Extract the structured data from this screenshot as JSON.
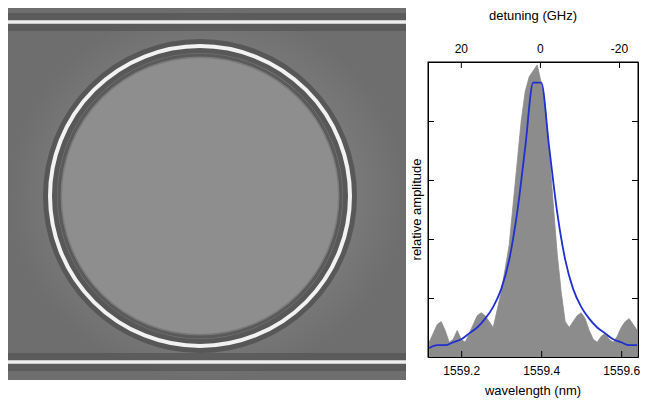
{
  "chart_data": {
    "type": "line",
    "x_label": "wavelength (nm)",
    "x2_label": "detuning (GHz)",
    "y_label": "relative amplitude",
    "xlim": [
      1559.117,
      1559.642
    ],
    "xticks": [
      1559.2,
      1559.4,
      1559.6
    ],
    "x2lim": [
      28.3,
      -24.8
    ],
    "x2ticks": [
      20,
      0,
      -20
    ],
    "ylim": [
      0,
      1
    ],
    "yticks": [
      0.2,
      0.4,
      0.6,
      0.8
    ],
    "tick_labels": "x",
    "series": [
      {
        "type": "area",
        "color": "#8c8c8c",
        "x": [
          1559.12,
          1559.13,
          1559.14,
          1559.15,
          1559.16,
          1559.17,
          1559.18,
          1559.19,
          1559.2,
          1559.21,
          1559.22,
          1559.23,
          1559.24,
          1559.25,
          1559.26,
          1559.27,
          1559.28,
          1559.29,
          1559.3,
          1559.31,
          1559.32,
          1559.33,
          1559.34,
          1559.35,
          1559.36,
          1559.37,
          1559.38,
          1559.39,
          1559.4,
          1559.41,
          1559.42,
          1559.43,
          1559.44,
          1559.45,
          1559.46,
          1559.47,
          1559.48,
          1559.49,
          1559.5,
          1559.51,
          1559.52,
          1559.53,
          1559.54,
          1559.55,
          1559.56,
          1559.57,
          1559.58,
          1559.59,
          1559.6,
          1559.61,
          1559.62,
          1559.63,
          1559.64
        ],
        "values": [
          0.05,
          0.08,
          0.11,
          0.12,
          0.09,
          0.05,
          0.06,
          0.09,
          0.06,
          0.05,
          0.08,
          0.11,
          0.14,
          0.15,
          0.14,
          0.12,
          0.1,
          0.16,
          0.22,
          0.3,
          0.38,
          0.52,
          0.66,
          0.8,
          0.9,
          0.95,
          0.97,
          0.99,
          0.93,
          0.85,
          0.7,
          0.52,
          0.35,
          0.22,
          0.12,
          0.1,
          0.12,
          0.14,
          0.15,
          0.13,
          0.09,
          0.06,
          0.05,
          0.07,
          0.08,
          0.06,
          0.05,
          0.07,
          0.1,
          0.12,
          0.13,
          0.11,
          0.09
        ]
      },
      {
        "type": "line",
        "color": "#1f2fd0",
        "x": [
          1559.12,
          1559.14,
          1559.16,
          1559.18,
          1559.2,
          1559.22,
          1559.24,
          1559.26,
          1559.28,
          1559.3,
          1559.32,
          1559.34,
          1559.36,
          1559.38,
          1559.4,
          1559.42,
          1559.44,
          1559.46,
          1559.48,
          1559.5,
          1559.52,
          1559.54,
          1559.56,
          1559.58,
          1559.6,
          1559.62,
          1559.64
        ],
        "values": [
          0.03,
          0.04,
          0.04,
          0.05,
          0.06,
          0.08,
          0.1,
          0.13,
          0.17,
          0.23,
          0.33,
          0.49,
          0.71,
          0.93,
          0.93,
          0.71,
          0.49,
          0.33,
          0.23,
          0.17,
          0.13,
          0.1,
          0.08,
          0.06,
          0.05,
          0.04,
          0.04
        ]
      }
    ]
  }
}
